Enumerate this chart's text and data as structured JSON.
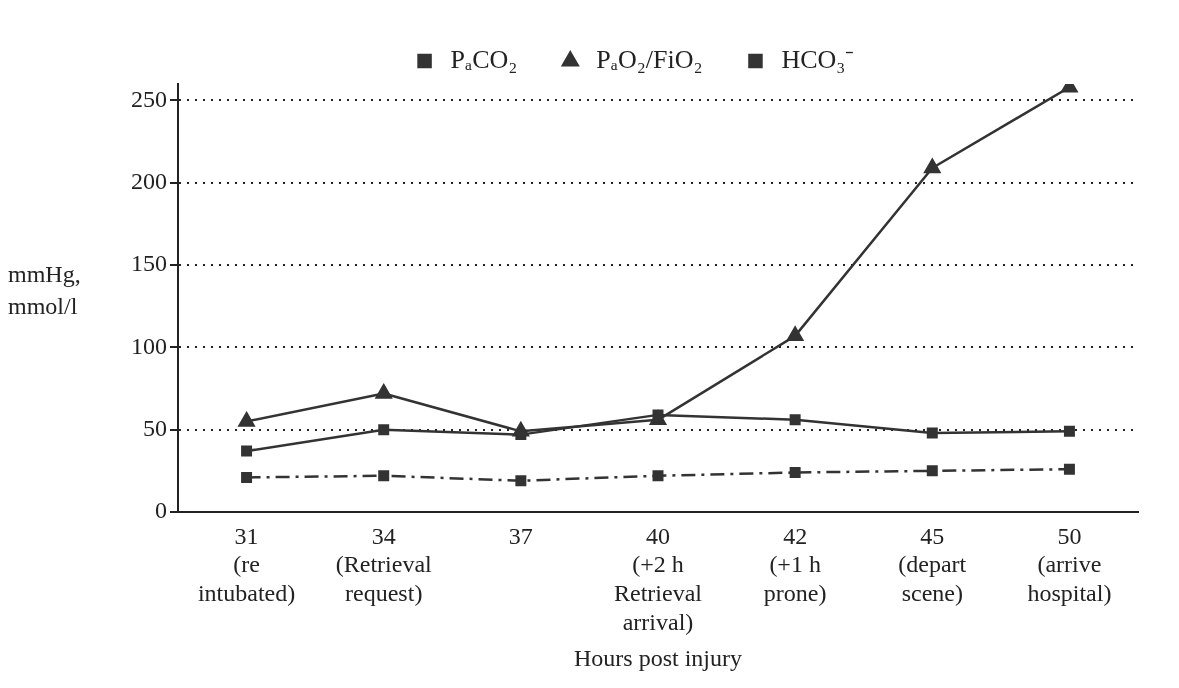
{
  "chart_data": {
    "type": "line",
    "xlabel": "Hours post injury",
    "ylabel": "mmHg, mmol/l",
    "categories": [
      "31\n(re\nintubated)",
      "34\n(Retrieval\nrequest)",
      "37",
      "40\n(+2 h\nRetrieval\narrival)",
      "42\n(+1 h\nprone)",
      "45\n(depart\nscene)",
      "50\n(arrive\nhospital)"
    ],
    "series": [
      {
        "name": "PₐCO₂",
        "color": "#333333",
        "marker": "square",
        "line_style": "solid",
        "values": [
          37,
          50,
          47,
          59,
          56,
          48,
          49
        ]
      },
      {
        "name": "PₐO₂/FiO₂",
        "color": "#333333",
        "marker": "triangle",
        "line_style": "solid",
        "values": [
          55,
          72,
          49,
          56,
          107,
          209,
          258
        ]
      },
      {
        "name": "HCO₃⁻",
        "color": "#333333",
        "marker": "square",
        "line_style": "dashed",
        "values": [
          21,
          22,
          19,
          22,
          24,
          25,
          26
        ]
      }
    ],
    "ylim": [
      0,
      260
    ],
    "yticks": [
      0,
      50,
      100,
      150,
      200,
      250
    ],
    "grid": "y",
    "legend": "top"
  }
}
